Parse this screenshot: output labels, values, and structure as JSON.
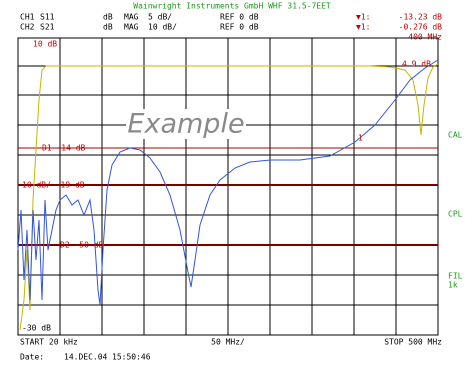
{
  "header": {
    "title": "Wainwright Instruments GmbH WHF 31.5-7EET",
    "ch1": {
      "label": "CH1",
      "param": "S11",
      "format": "dB",
      "mode": "MAG",
      "scale": "5 dB/",
      "ref": "REF 0 dB"
    },
    "ch2": {
      "label": "CH2",
      "param": "S21",
      "format": "dB",
      "mode": "MAG",
      "scale": "10 dB/",
      "ref": "REF 0 dB"
    },
    "marker1": {
      "symbol": "▼1:",
      "value": "-13.23 dB"
    },
    "marker2": {
      "symbol": "▼1:",
      "value": "-0.276 dB"
    },
    "marker_freq": "400 MHz"
  },
  "screen": {
    "top_label": "10 dB",
    "bottom_label": "-30 dB",
    "watermark": "Example",
    "d1": "D1  -14 dB",
    "ref_line": "10 dB/  -19 dB",
    "d2": "D2  -50 dB",
    "marker_top": "4.9 dB",
    "marker_num": "1"
  },
  "side": {
    "cal": "CAL",
    "cpl": "CPL",
    "fil": "FIL",
    "fil_sub": "1k"
  },
  "footer": {
    "start": "START  20 kHz",
    "center": "50 MHz/",
    "stop": "STOP 500 MHz",
    "date_label": "Date:",
    "date": "14.DEC.04",
    "time": "15:50:46"
  }
}
